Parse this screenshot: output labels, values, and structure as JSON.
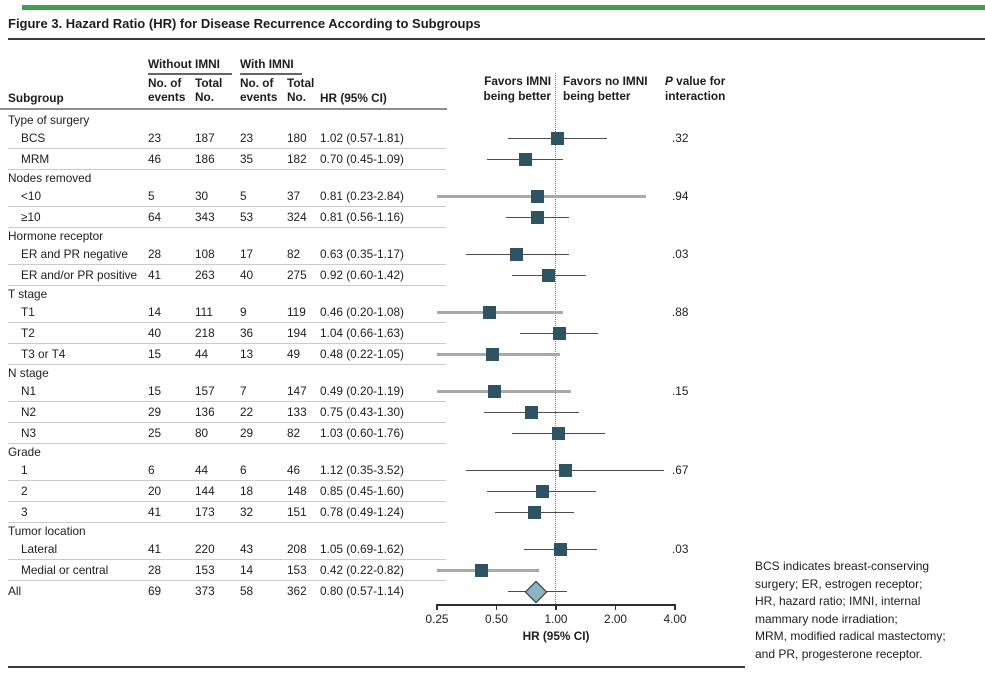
{
  "figure": {
    "title": "Figure 3. Hazard Ratio (HR) for Disease Recurrence According to Subgroups"
  },
  "table_header": {
    "col_subgroup": "Subgroup",
    "group_without": "Without IMNI",
    "group_with": "With IMNI",
    "sub_events_l1": "No. of",
    "sub_events_l2": "events",
    "sub_total_l1": "Total",
    "sub_total_l2": "No.",
    "col_hr": "HR (95% CI)"
  },
  "favors": {
    "left_l1": "Favors IMNI",
    "left_l2": "being better",
    "right_l1": "Favors no IMNI",
    "right_l2": "being better",
    "p_l1_italic": "P",
    "p_l1_rest": " value for",
    "p_l2": "interaction"
  },
  "footnote_lines": [
    "BCS indicates breast-conserving",
    "surgery; ER, estrogen receptor;",
    "HR, hazard ratio; IMNI, internal",
    "mammary node irradiation;",
    "MRM, modified radical mastectomy;",
    "and PR, progesterone receptor."
  ],
  "colors": {
    "green_bar": "#3fa24b",
    "marker_square": "#2e5464",
    "diamond_fill": "#8fb4c1",
    "diamond_border": "#2d2d2d",
    "ci_line": "#4d4d4d",
    "ci_line_clipped": "#a9a9a9",
    "separator": "#cbcbcb",
    "rule_dark": "#3a3a3a",
    "rule_gray": "#8f8f8f",
    "dotted_line": "#777777",
    "text": "#1d1d1f"
  },
  "chart_data": {
    "type": "scatter",
    "subtype": "forest-plot",
    "title": "Figure 3. Hazard Ratio (HR) for Disease Recurrence According to Subgroups",
    "xlabel": "HR (95% CI)",
    "x_scale": "log",
    "xlim": [
      0.25,
      4.0
    ],
    "reference_line": 1.0,
    "ticks": [
      {
        "v": 0.25,
        "label": "0.25"
      },
      {
        "v": 0.5,
        "label": "0.50"
      },
      {
        "v": 1.0,
        "label": "1.00"
      },
      {
        "v": 2.0,
        "label": "2.00"
      },
      {
        "v": 4.0,
        "label": "4.00"
      }
    ],
    "groups": [
      {
        "label": "Type of surgery",
        "p_interaction": ".32",
        "items": [
          {
            "label": "BCS",
            "events_without": "23",
            "total_without": "187",
            "events_with": "23",
            "total_with": "180",
            "hr": 1.02,
            "lo": 0.57,
            "hi": 1.81,
            "hr_text": "1.02 (0.57-1.81)"
          },
          {
            "label": "MRM",
            "events_without": "46",
            "total_without": "186",
            "events_with": "35",
            "total_with": "182",
            "hr": 0.7,
            "lo": 0.45,
            "hi": 1.09,
            "hr_text": "0.70 (0.45-1.09)"
          }
        ]
      },
      {
        "label": "Nodes removed",
        "p_interaction": ".94",
        "items": [
          {
            "label": "<10",
            "events_without": "5",
            "total_without": "30",
            "events_with": "5",
            "total_with": "37",
            "hr": 0.81,
            "lo": 0.23,
            "hi": 2.84,
            "hr_text": "0.81 (0.23-2.84)"
          },
          {
            "label": "≥10",
            "events_without": "64",
            "total_without": "343",
            "events_with": "53",
            "total_with": "324",
            "hr": 0.81,
            "lo": 0.56,
            "hi": 1.16,
            "hr_text": "0.81 (0.56-1.16)"
          }
        ]
      },
      {
        "label": "Hormone receptor",
        "p_interaction": ".03",
        "items": [
          {
            "label": "ER and PR negative",
            "events_without": "28",
            "total_without": "108",
            "events_with": "17",
            "total_with": "82",
            "hr": 0.63,
            "lo": 0.35,
            "hi": 1.17,
            "hr_text": "0.63 (0.35-1.17)"
          },
          {
            "label": "ER and/or PR positive",
            "events_without": "41",
            "total_without": "263",
            "events_with": "40",
            "total_with": "275",
            "hr": 0.92,
            "lo": 0.6,
            "hi": 1.42,
            "hr_text": "0.92 (0.60-1.42)"
          }
        ]
      },
      {
        "label": "T stage",
        "p_interaction": ".88",
        "items": [
          {
            "label": "T1",
            "events_without": "14",
            "total_without": "111",
            "events_with": "9",
            "total_with": "119",
            "hr": 0.46,
            "lo": 0.2,
            "hi": 1.08,
            "hr_text": "0.46 (0.20-1.08)"
          },
          {
            "label": "T2",
            "events_without": "40",
            "total_without": "218",
            "events_with": "36",
            "total_with": "194",
            "hr": 1.04,
            "lo": 0.66,
            "hi": 1.63,
            "hr_text": "1.04 (0.66-1.63)"
          },
          {
            "label": "T3 or T4",
            "events_without": "15",
            "total_without": "44",
            "events_with": "13",
            "total_with": "49",
            "hr": 0.48,
            "lo": 0.22,
            "hi": 1.05,
            "hr_text": "0.48 (0.22-1.05)"
          }
        ]
      },
      {
        "label": "N stage",
        "p_interaction": ".15",
        "items": [
          {
            "label": "N1",
            "events_without": "15",
            "total_without": "157",
            "events_with": "7",
            "total_with": "147",
            "hr": 0.49,
            "lo": 0.2,
            "hi": 1.19,
            "hr_text": "0.49 (0.20-1.19)"
          },
          {
            "label": "N2",
            "events_without": "29",
            "total_without": "136",
            "events_with": "22",
            "total_with": "133",
            "hr": 0.75,
            "lo": 0.43,
            "hi": 1.3,
            "hr_text": "0.75 (0.43-1.30)"
          },
          {
            "label": "N3",
            "events_without": "25",
            "total_without": "80",
            "events_with": "29",
            "total_with": "82",
            "hr": 1.03,
            "lo": 0.6,
            "hi": 1.76,
            "hr_text": "1.03 (0.60-1.76)"
          }
        ]
      },
      {
        "label": "Grade",
        "p_interaction": ".67",
        "items": [
          {
            "label": "1",
            "events_without": "6",
            "total_without": "44",
            "events_with": "6",
            "total_with": "46",
            "hr": 1.12,
            "lo": 0.35,
            "hi": 3.52,
            "hr_text": "1.12 (0.35-3.52)"
          },
          {
            "label": "2",
            "events_without": "20",
            "total_without": "144",
            "events_with": "18",
            "total_with": "148",
            "hr": 0.85,
            "lo": 0.45,
            "hi": 1.6,
            "hr_text": "0.85 (0.45-1.60)"
          },
          {
            "label": "3",
            "events_without": "41",
            "total_without": "173",
            "events_with": "32",
            "total_with": "151",
            "hr": 0.78,
            "lo": 0.49,
            "hi": 1.24,
            "hr_text": "0.78 (0.49-1.24)"
          }
        ]
      },
      {
        "label": "Tumor location",
        "p_interaction": ".03",
        "items": [
          {
            "label": "Lateral",
            "events_without": "41",
            "total_without": "220",
            "events_with": "43",
            "total_with": "208",
            "hr": 1.05,
            "lo": 0.69,
            "hi": 1.62,
            "hr_text": "1.05 (0.69-1.62)"
          },
          {
            "label": "Medial or central",
            "events_without": "28",
            "total_without": "153",
            "events_with": "14",
            "total_with": "153",
            "hr": 0.42,
            "lo": 0.22,
            "hi": 0.82,
            "hr_text": "0.42 (0.22-0.82)"
          }
        ]
      }
    ],
    "overall": {
      "label": "All",
      "events_without": "69",
      "total_without": "373",
      "events_with": "58",
      "total_with": "362",
      "hr": 0.8,
      "lo": 0.57,
      "hi": 1.14,
      "hr_text": "0.80 (0.57-1.14)",
      "marker": "diamond"
    }
  }
}
